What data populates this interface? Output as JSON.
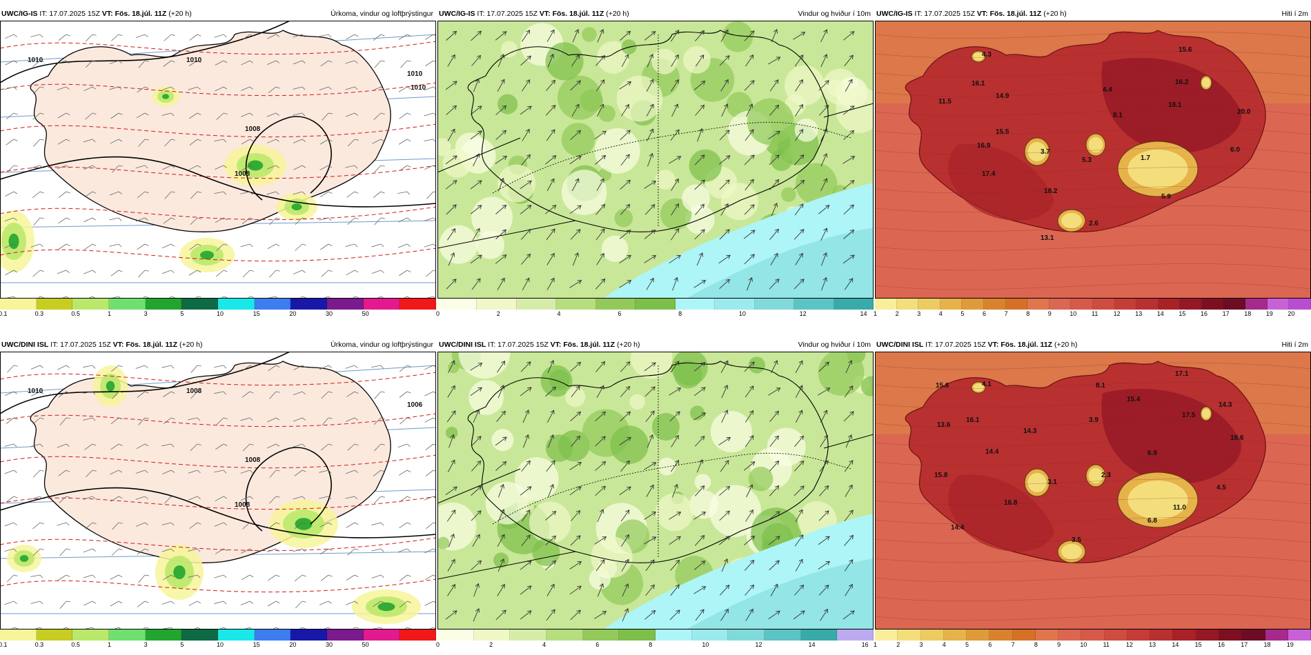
{
  "panels": [
    {
      "id": "p1",
      "model": "UWC/IG-IS",
      "it_label": "IT:",
      "it_value": "17.07.2025 15Z",
      "vt_label": "VT:",
      "vt_value": "Fös. 18.júl. 11Z",
      "lead": "(+20 h)",
      "title": "Úrkoma, vindur og loftþrýstingur",
      "theme": "precip",
      "colorbar": [
        "#f7f59a",
        "#c8cd22",
        "#b9e86a",
        "#6fe06f",
        "#22a52e",
        "#0e6a45",
        "#18e8e8",
        "#3c7df0",
        "#1818a8",
        "#7b1a8c",
        "#e21a8e",
        "#f01818"
      ],
      "ticks": [
        "0.1",
        "0.3",
        "0.5",
        "1",
        "3",
        "5",
        "10",
        "15",
        "20",
        "30",
        "50"
      ],
      "isobars": [
        "1010",
        "1010",
        "1008",
        "1008",
        "1010",
        "1010"
      ],
      "values": []
    },
    {
      "id": "p2",
      "model": "UWC/IG-IS",
      "it_label": "IT:",
      "it_value": "17.07.2025 15Z",
      "vt_label": "VT:",
      "vt_value": "Fös. 18.júl. 11Z",
      "lead": "(+20 h)",
      "title": "Vindur og hviður í 10m",
      "theme": "wind",
      "colorbar": [
        "#fbfde6",
        "#f0f8c8",
        "#d6edaa",
        "#b6de7e",
        "#92c95a",
        "#7cbf4a",
        "#aef5f7",
        "#9aeaee",
        "#80dada",
        "#5cc4c4",
        "#38aaaa"
      ],
      "ticks": [
        "0",
        "2",
        "4",
        "6",
        "8",
        "10",
        "12",
        "14"
      ],
      "isobars": [],
      "values": []
    },
    {
      "id": "p3",
      "model": "UWC/IG-IS",
      "it_label": "IT:",
      "it_value": "17.07.2025 15Z",
      "vt_label": "VT:",
      "vt_value": "Fös. 18.júl. 11Z",
      "lead": "(+20 h)",
      "title": "Hiti í 2m",
      "theme": "temp",
      "colorbar": [
        "#f9ef9a",
        "#f4de7c",
        "#eccb62",
        "#e6b24a",
        "#df9a3a",
        "#d9822e",
        "#d67026",
        "#e0764e",
        "#db6652",
        "#d55a4a",
        "#ce4c40",
        "#c63c38",
        "#b93030",
        "#a82228",
        "#951826",
        "#7c1022",
        "#6d0d25",
        "#a62a8c",
        "#c860d8",
        "#b84dd0"
      ],
      "ticks": [
        "1",
        "2",
        "3",
        "4",
        "5",
        "6",
        "7",
        "8",
        "9",
        "10",
        "11",
        "12",
        "13",
        "14",
        "15",
        "16",
        "17",
        "18",
        "19",
        "20"
      ],
      "isobars": [],
      "values": [
        "4.3",
        "15.6",
        "16.1",
        "14.9",
        "4.4",
        "16.2",
        "11.5",
        "8.1",
        "18.1",
        "20.0",
        "15.5",
        "16.9",
        "3.7",
        "5.3",
        "6.0",
        "1.7",
        "17.4",
        "18.2",
        "5.9",
        "2.6",
        "13.1"
      ]
    },
    {
      "id": "p4",
      "model": "UWC/DINI ISL",
      "it_label": "IT:",
      "it_value": "17.07.2025 15Z",
      "vt_label": "VT:",
      "vt_value": "Fös. 18.júl. 11Z",
      "lead": "(+20 h)",
      "title": "Úrkoma, vindur og loftþrýstingur",
      "theme": "precip",
      "colorbar": [
        "#f7f59a",
        "#c8cd22",
        "#b9e86a",
        "#6fe06f",
        "#22a52e",
        "#0e6a45",
        "#18e8e8",
        "#3c7df0",
        "#1818a8",
        "#7b1a8c",
        "#e21a8e",
        "#f01818"
      ],
      "ticks": [
        "0.1",
        "0.3",
        "0.5",
        "1",
        "3",
        "5",
        "10",
        "15",
        "20",
        "30",
        "50"
      ],
      "isobars": [
        "1010",
        "1008",
        "1008",
        "1008",
        "1006"
      ],
      "values": []
    },
    {
      "id": "p5",
      "model": "UWC/DINI ISL",
      "it_label": "IT:",
      "it_value": "17.07.2025 15Z",
      "vt_label": "VT:",
      "vt_value": "Fös. 18.júl. 11Z",
      "lead": "(+20 h)",
      "title": "Vindur og hviður í 10m",
      "theme": "wind",
      "colorbar": [
        "#fbfde6",
        "#f0f8c8",
        "#d6edaa",
        "#b6de7e",
        "#92c95a",
        "#7cbf4a",
        "#aef5f7",
        "#9aeaee",
        "#80dada",
        "#5cc4c4",
        "#38aaaa",
        "#bcaaf0"
      ],
      "ticks": [
        "0",
        "2",
        "4",
        "6",
        "8",
        "10",
        "12",
        "14",
        "16"
      ],
      "isobars": [],
      "values": []
    },
    {
      "id": "p6",
      "model": "UWC/DINI ISL",
      "it_label": "IT:",
      "it_value": "17.07.2025 15Z",
      "vt_label": "VT:",
      "vt_value": "Fös. 18.júl. 11Z",
      "lead": "(+20 h)",
      "title": "Hiti í 2m",
      "theme": "temp",
      "colorbar": [
        "#f9ef9a",
        "#f4de7c",
        "#eccb62",
        "#e6b24a",
        "#df9a3a",
        "#d9822e",
        "#d67026",
        "#e0764e",
        "#db6652",
        "#d55a4a",
        "#ce4c40",
        "#c63c38",
        "#b93030",
        "#a82228",
        "#951826",
        "#7c1022",
        "#6d0d25",
        "#a62a8c",
        "#c860d8"
      ],
      "ticks": [
        "1",
        "2",
        "3",
        "4",
        "5",
        "6",
        "7",
        "8",
        "9",
        "10",
        "11",
        "12",
        "13",
        "14",
        "15",
        "16",
        "17",
        "18",
        "19"
      ],
      "isobars": [],
      "values": [
        "15.6",
        "4.1",
        "8.1",
        "17.1",
        "15.4",
        "14.3",
        "16.1",
        "3.9",
        "17.5",
        "13.6",
        "14.3",
        "18.6",
        "14.4",
        "6.9",
        "15.8",
        "3.1",
        "2.3",
        "4.5",
        "16.8",
        "11.0",
        "6.8",
        "14.4",
        "3.5"
      ]
    }
  ]
}
